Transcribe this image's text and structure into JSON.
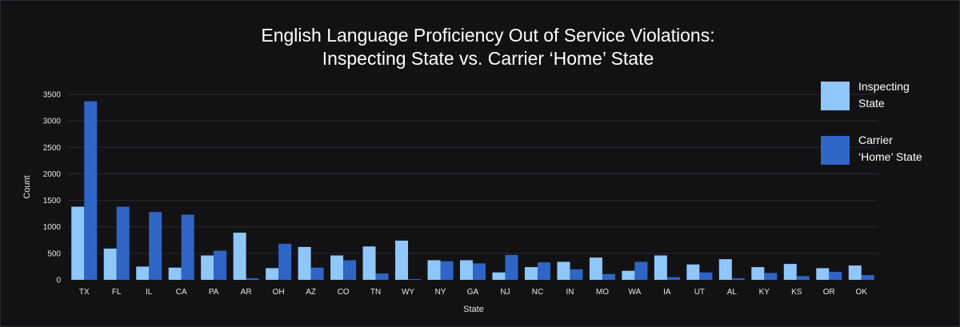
{
  "chart_data": {
    "type": "bar",
    "title": "English Language Proficiency Out of Service Violations:",
    "subtitle": "Inspecting State vs. Carrier ‘Home’ State",
    "xlabel": "State",
    "ylabel": "Count",
    "ylim": [
      0,
      3500
    ],
    "yticks": [
      0,
      500,
      1000,
      1500,
      2000,
      2500,
      3000,
      3500
    ],
    "grid": true,
    "legend_position": "top-right",
    "categories": [
      "TX",
      "FL",
      "IL",
      "CA",
      "PA",
      "AR",
      "OH",
      "AZ",
      "CO",
      "TN",
      "WY",
      "NY",
      "GA",
      "NJ",
      "NC",
      "IN",
      "MO",
      "WA",
      "IA",
      "UT",
      "AL",
      "KY",
      "KS",
      "OR",
      "OK"
    ],
    "series": [
      {
        "name": "Inspecting State",
        "legend_lines": [
          "Inspecting",
          "State"
        ],
        "color": "#8fc7fb",
        "values": [
          1380,
          590,
          250,
          230,
          460,
          890,
          220,
          620,
          460,
          630,
          740,
          370,
          370,
          140,
          240,
          340,
          420,
          170,
          460,
          290,
          390,
          240,
          300,
          220,
          270
        ]
      },
      {
        "name": "Carrier ‘Home’ State",
        "legend_lines": [
          "Carrier",
          "‘Home’ State"
        ],
        "color": "#2f65c6",
        "values": [
          3370,
          1380,
          1280,
          1230,
          550,
          30,
          680,
          230,
          370,
          120,
          15,
          350,
          310,
          470,
          330,
          200,
          110,
          340,
          50,
          140,
          30,
          130,
          70,
          150,
          90
        ]
      }
    ]
  }
}
